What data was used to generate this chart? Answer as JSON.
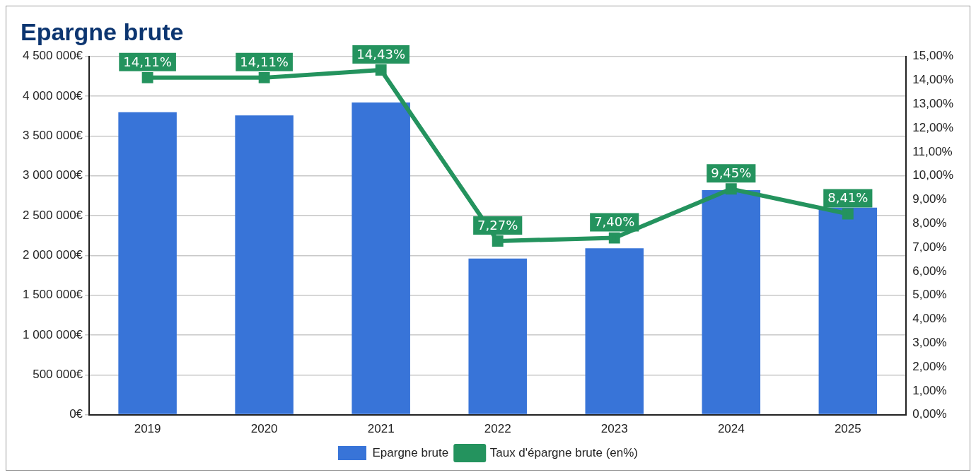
{
  "chart_data": {
    "type": "bar",
    "title": "Epargne brute",
    "categories": [
      "2019",
      "2020",
      "2021",
      "2022",
      "2023",
      "2024",
      "2025"
    ],
    "series": [
      {
        "name": "Epargne brute",
        "color": "#3874d8",
        "values": [
          3800000,
          3760000,
          3920000,
          1960000,
          2090000,
          2820000,
          2600000
        ]
      },
      {
        "name": "Taux d'épargne brute (en%)",
        "type": "line",
        "axis": "y2",
        "color": "#24935e",
        "values": [
          14.11,
          14.11,
          14.43,
          7.27,
          7.4,
          9.45,
          8.41
        ],
        "value_labels": [
          "14,11%",
          "14,11%",
          "14,43%",
          "7,27%",
          "7,40%",
          "9,45%",
          "8,41%"
        ]
      }
    ],
    "ylim": [
      0,
      4500000
    ],
    "yticks": [
      {
        "value": 0,
        "label": "0€"
      },
      {
        "value": 500000,
        "label": "500 000€"
      },
      {
        "value": 1000000,
        "label": "1 000 000€"
      },
      {
        "value": 1500000,
        "label": "1 500 000€"
      },
      {
        "value": 2000000,
        "label": "2 000 000€"
      },
      {
        "value": 2500000,
        "label": "2 500 000€"
      },
      {
        "value": 3000000,
        "label": "3 000 000€"
      },
      {
        "value": 3500000,
        "label": "3 500 000€"
      },
      {
        "value": 4000000,
        "label": "4 000 000€"
      },
      {
        "value": 4500000,
        "label": "4 500 000€"
      }
    ],
    "y2lim": [
      0,
      15
    ],
    "y2ticks": [
      {
        "value": 0,
        "label": "0,00%"
      },
      {
        "value": 1,
        "label": "1,00%"
      },
      {
        "value": 2,
        "label": "2,00%"
      },
      {
        "value": 3,
        "label": "3,00%"
      },
      {
        "value": 4,
        "label": "4,00%"
      },
      {
        "value": 5,
        "label": "5,00%"
      },
      {
        "value": 6,
        "label": "6,00%"
      },
      {
        "value": 7,
        "label": "7,00%"
      },
      {
        "value": 8,
        "label": "8,00%"
      },
      {
        "value": 9,
        "label": "9,00%"
      },
      {
        "value": 10,
        "label": "10,00%"
      },
      {
        "value": 11,
        "label": "11,00%"
      },
      {
        "value": 12,
        "label": "12,00%"
      },
      {
        "value": 13,
        "label": "13,00%"
      },
      {
        "value": 14,
        "label": "14,00%"
      },
      {
        "value": 15,
        "label": "15,00%"
      }
    ],
    "grid": "y",
    "legend": "bottom",
    "marker": "square"
  }
}
